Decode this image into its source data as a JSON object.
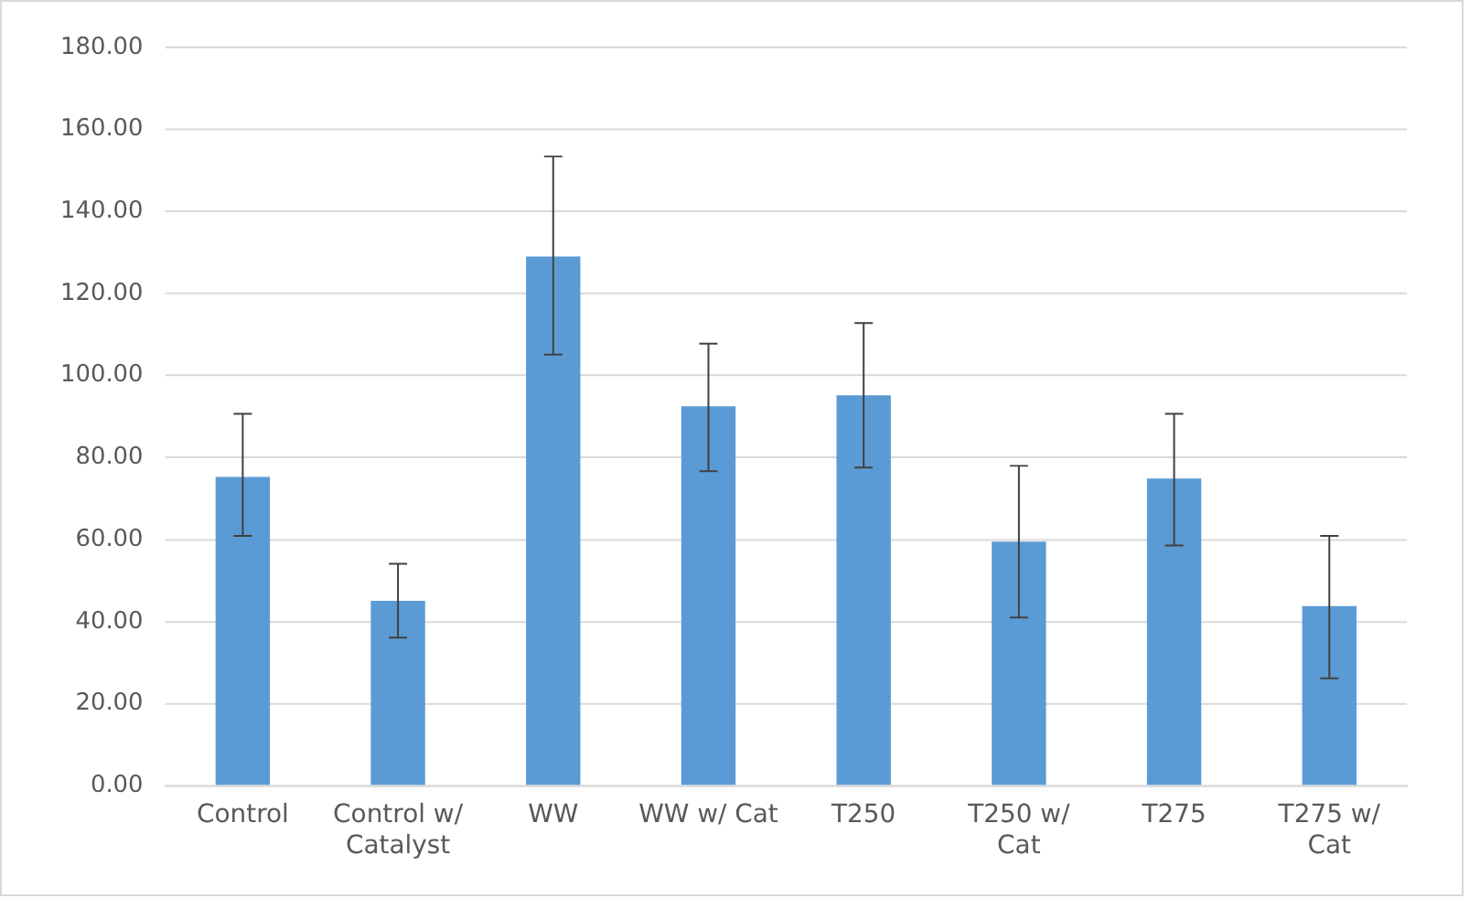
{
  "chart_data": {
    "type": "bar",
    "categories": [
      "Control",
      "Control w/ Catalyst",
      "WW",
      "WW w/ Cat",
      "T250",
      "T250 w/ Cat",
      "T275",
      "T275 w/ Cat"
    ],
    "values": [
      75.3,
      45.1,
      129,
      92.5,
      95.2,
      59.5,
      74.9,
      43.8
    ],
    "errors": [
      [
        60.9,
        90.7
      ],
      [
        36.1,
        54.1
      ],
      [
        105.1,
        153.4
      ],
      [
        76.7,
        107.8
      ],
      [
        77.6,
        112.8
      ],
      [
        41,
        78
      ],
      [
        58.6,
        90.7
      ],
      [
        26.2,
        60.9
      ]
    ],
    "color": "#5b9bd5",
    "ylim": [
      0,
      180
    ],
    "yticks": [
      {
        "value": 0,
        "label": "0.00"
      },
      {
        "value": 20,
        "label": "20.00"
      },
      {
        "value": 40,
        "label": "40.00"
      },
      {
        "value": 60,
        "label": "60.00"
      },
      {
        "value": 80,
        "label": "80.00"
      },
      {
        "value": 100,
        "label": "100.00"
      },
      {
        "value": 120,
        "label": "120.00"
      },
      {
        "value": 140,
        "label": "140.00"
      },
      {
        "value": 160,
        "label": "160.00"
      },
      {
        "value": 180,
        "label": "180.00"
      }
    ],
    "grid": "y"
  }
}
